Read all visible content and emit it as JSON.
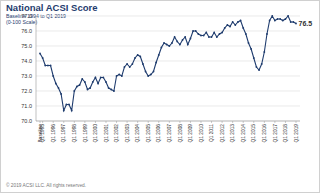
{
  "chart_data": {
    "type": "line",
    "title": "National ACSI Score",
    "subtitle": [
      "Baseline 1994 to Q1 2019",
      "(0-100 Scale)"
    ],
    "footer": "© 2019 ACSI LLC. All rights reserved.",
    "annotation": "76.5",
    "color": "#1f3c6e",
    "marker": "circle",
    "grid": true,
    "ylim": [
      70,
      77
    ],
    "yticks": [
      {
        "value": 70,
        "label": "70.0"
      },
      {
        "value": 71,
        "label": "71.0"
      },
      {
        "value": 72,
        "label": "72.0"
      },
      {
        "value": 73,
        "label": "73.0"
      },
      {
        "value": 74,
        "label": "74.0"
      },
      {
        "value": 75,
        "label": "75.0"
      },
      {
        "value": 76,
        "label": "76.0"
      },
      {
        "value": 77,
        "label": "77.0"
      }
    ],
    "categories": [
      "Baseline",
      "Q1 1995",
      null,
      null,
      null,
      "Q1 1996",
      null,
      null,
      null,
      "Q1 1997",
      null,
      null,
      null,
      "Q1 1998",
      null,
      null,
      null,
      "Q1 1999",
      null,
      null,
      null,
      "Q1 2000",
      null,
      null,
      null,
      "Q1 2001",
      null,
      null,
      null,
      "Q1 2002",
      null,
      null,
      null,
      "Q1 2003",
      null,
      null,
      null,
      "Q1 2004",
      null,
      null,
      null,
      "Q1 2005",
      null,
      null,
      null,
      "Q1 2006",
      null,
      null,
      null,
      "Q1 2007",
      null,
      null,
      null,
      "Q1 2008",
      null,
      null,
      null,
      "Q1 2009",
      null,
      null,
      null,
      "Q1 2010",
      null,
      null,
      null,
      "Q1 2011",
      null,
      null,
      null,
      "Q1 2012",
      null,
      null,
      null,
      "Q1 2013",
      null,
      null,
      null,
      "Q1 2014",
      null,
      null,
      null,
      "Q1 2015",
      null,
      null,
      null,
      "Q1 2016",
      null,
      null,
      null,
      "Q1 2017",
      null,
      null,
      null,
      "Q1 2018",
      null,
      null,
      null,
      "Q1 2019"
    ],
    "values": [
      74.5,
      74.2,
      73.7,
      73.7,
      73.7,
      73.0,
      72.5,
      72.2,
      71.8,
      70.7,
      71.1,
      71.1,
      70.7,
      72.0,
      72.3,
      72.4,
      72.8,
      72.6,
      72.1,
      72.2,
      72.6,
      72.9,
      72.5,
      72.9,
      72.9,
      72.6,
      72.2,
      72.1,
      72.0,
      73.0,
      73.1,
      73.0,
      73.6,
      73.8,
      73.6,
      73.8,
      74.2,
      74.4,
      74.3,
      73.8,
      73.3,
      73.0,
      73.1,
      73.3,
      73.9,
      74.4,
      74.9,
      75.2,
      75.1,
      75.0,
      75.2,
      75.6,
      75.3,
      75.1,
      75.4,
      75.6,
      75.1,
      75.5,
      76.0,
      76.0,
      75.8,
      75.7,
      75.7,
      75.9,
      75.6,
      75.6,
      75.9,
      75.6,
      75.8,
      75.9,
      76.2,
      76.4,
      76.3,
      76.6,
      76.4,
      76.6,
      76.7,
      76.2,
      75.8,
      75.2,
      74.8,
      74.2,
      73.6,
      73.4,
      73.8,
      74.6,
      75.8,
      76.7,
      77.0,
      76.7,
      76.8,
      76.8,
      76.7,
      76.8,
      77.0,
      76.6,
      76.6,
      76.5
    ]
  }
}
